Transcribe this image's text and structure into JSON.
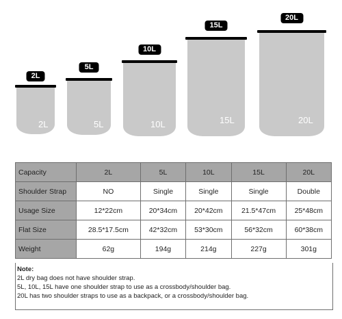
{
  "bags": [
    {
      "badge": "2L",
      "label": "2L"
    },
    {
      "badge": "5L",
      "label": "5L"
    },
    {
      "badge": "10L",
      "label": "10L"
    },
    {
      "badge": "15L",
      "label": "15L"
    },
    {
      "badge": "20L",
      "label": "20L"
    }
  ],
  "table": {
    "header": {
      "label": "Capacity",
      "cols": [
        "2L",
        "5L",
        "10L",
        "15L",
        "20L"
      ]
    },
    "rows": [
      {
        "label": "Shoulder Strap",
        "cells": [
          "NO",
          "Single",
          "Single",
          "Single",
          "Double"
        ]
      },
      {
        "label": "Usage Size",
        "cells": [
          "12*22cm",
          "20*34cm",
          "20*42cm",
          "21.5*47cm",
          "25*48cm"
        ]
      },
      {
        "label": "Flat Size",
        "cells": [
          "28.5*17.5cm",
          "42*32cm",
          "53*30cm",
          "56*32cm",
          "60*38cm"
        ]
      },
      {
        "label": "Weight",
        "cells": [
          "62g",
          "194g",
          "214g",
          "227g",
          "301g"
        ]
      }
    ]
  },
  "note": {
    "title": "Note:",
    "lines": [
      "2L dry bag does not have shoulder strap.",
      "5L, 10L, 15L have one shoulder strap to use as a crossbody/shoulder bag.",
      "20L has two shoulder straps to use as a backpack, or a crossbody/shoulder bag."
    ]
  }
}
